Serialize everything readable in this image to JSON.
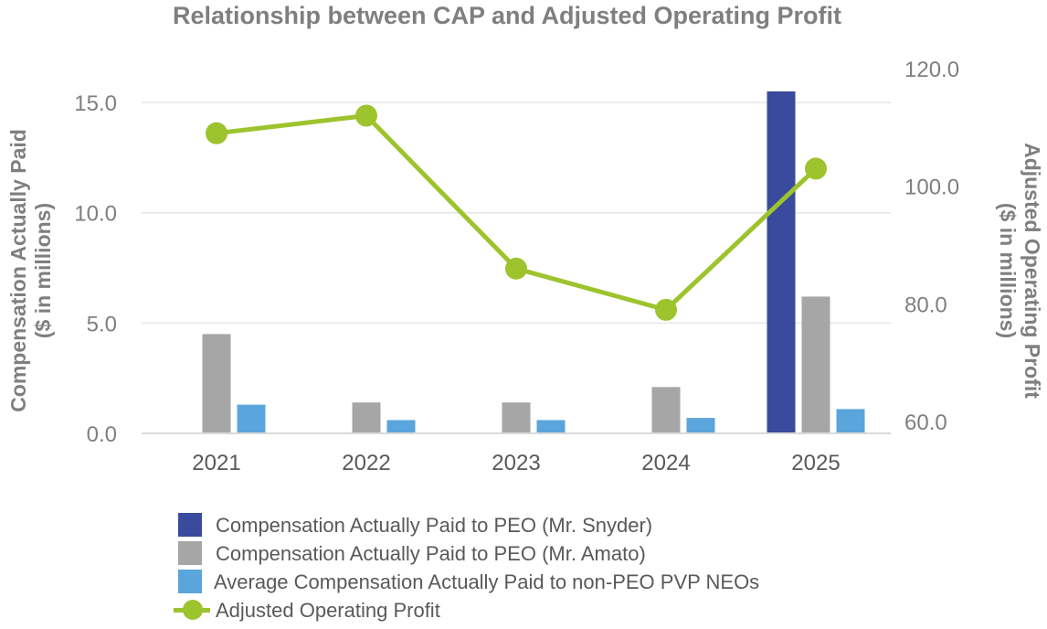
{
  "chart_data": {
    "type": "bar",
    "title": "Relationship between CAP and Adjusted Operating Profit",
    "categories": [
      "2021",
      "2022",
      "2023",
      "2024",
      "2025"
    ],
    "left_axis": {
      "label_line1": "Compensation Actually Paid",
      "label_line2": "($ in millions)",
      "ticks": [
        "0.0",
        "5.0",
        "10.0",
        "15.0"
      ],
      "tick_values": [
        0,
        5,
        10,
        15
      ],
      "ylim": [
        0,
        15.5
      ]
    },
    "right_axis": {
      "label_line1": "Adjusted Operating Profit",
      "label_line2": "($ in millions)",
      "ticks": [
        "60.0",
        "80.0",
        "100.0",
        "120.0"
      ],
      "tick_values": [
        60,
        80,
        100,
        120
      ],
      "ylim": [
        58,
        120
      ]
    },
    "grid": true,
    "series": [
      {
        "name": "Compensation Actually Paid to PEO (Mr. Snyder)",
        "kind": "bar",
        "axis": "left",
        "color": "#3a4a9c",
        "values": [
          null,
          null,
          null,
          null,
          15.5
        ]
      },
      {
        "name": "Compensation Actually Paid to PEO (Mr. Amato)",
        "kind": "bar",
        "axis": "left",
        "color": "#a6a6a6",
        "values": [
          4.5,
          1.4,
          1.4,
          2.1,
          6.2
        ]
      },
      {
        "name": "Average Compensation Actually Paid to non-PEO PVP NEOs",
        "kind": "bar",
        "axis": "left",
        "color": "#5aa5dc",
        "values": [
          1.3,
          0.6,
          0.6,
          0.7,
          1.1
        ]
      },
      {
        "name": "Adjusted Operating Profit",
        "kind": "line",
        "axis": "right",
        "color": "#9dc32d",
        "values": [
          109,
          112,
          86,
          79,
          103
        ]
      }
    ]
  }
}
